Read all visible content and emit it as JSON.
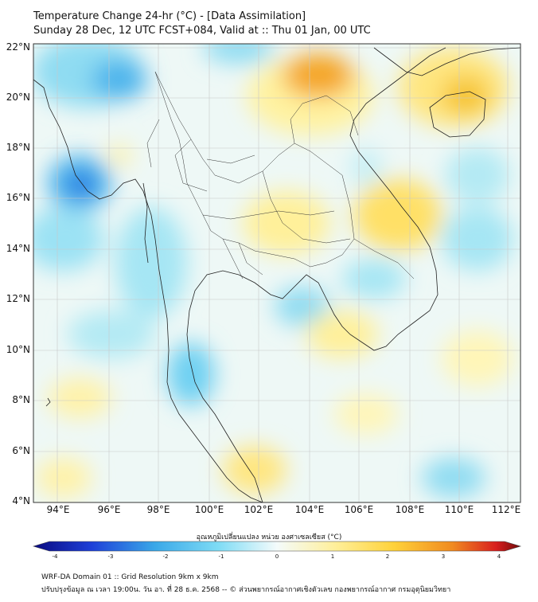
{
  "header": {
    "line1": "Temperature Change 24-hr (°C) - [Data Assimilation]",
    "line2": "Sunday 28 Dec, 12 UTC FCST+084, Valid at :: Thu 01 Jan, 00 UTC"
  },
  "map": {
    "lat_labels": [
      "22°N",
      "20°N",
      "18°N",
      "16°N",
      "14°N",
      "12°N",
      "10°N",
      "8°N",
      "6°N",
      "4°N"
    ],
    "lon_labels": [
      "94°E",
      "96°E",
      "98°E",
      "100°E",
      "102°E",
      "104°E",
      "106°E",
      "108°E",
      "110°E",
      "112°E"
    ],
    "colors": {
      "warm": "#ffe066",
      "hot": "#f0a020",
      "cool": "#7fdcf5",
      "cold": "#3aa8e8",
      "neutral": "#eaf7f7"
    }
  },
  "colorbar": {
    "title": "อุณหภูมิเปลี่ยนแปลง หน่วย องศาเซลเซียส (°C)",
    "ticks": [
      "-4",
      "-3",
      "-2",
      "-1",
      "0",
      "1",
      "2",
      "3",
      "4"
    ],
    "range": [
      -4,
      4
    ]
  },
  "footer": {
    "line1": "WRF-DA Domain 01 :: Grid Resolution 9km x 9km",
    "line2": "ปรับปรุงข้อมูล ณ เวลา 19:00น. วัน อา. ที่ 28 ธ.ค. 2568 -- © ส่วนพยากรณ์อากาศเชิงตัวเลข กองพยากรณ์อากาศ กรมอุตุนิยมวิทยา"
  }
}
